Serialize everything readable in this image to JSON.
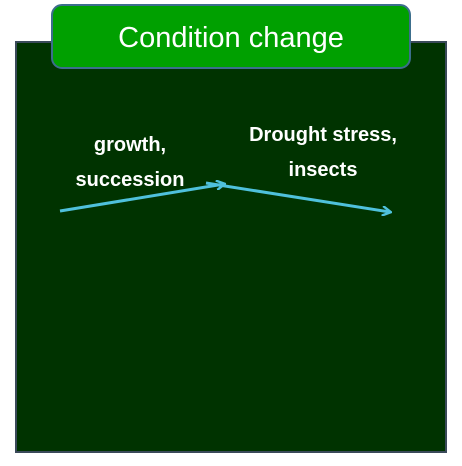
{
  "title": "Condition change",
  "labels": [
    {
      "lines": [
        "growth,",
        "succession"
      ]
    },
    {
      "lines": [
        "Drought stress,",
        "insects"
      ]
    }
  ]
}
